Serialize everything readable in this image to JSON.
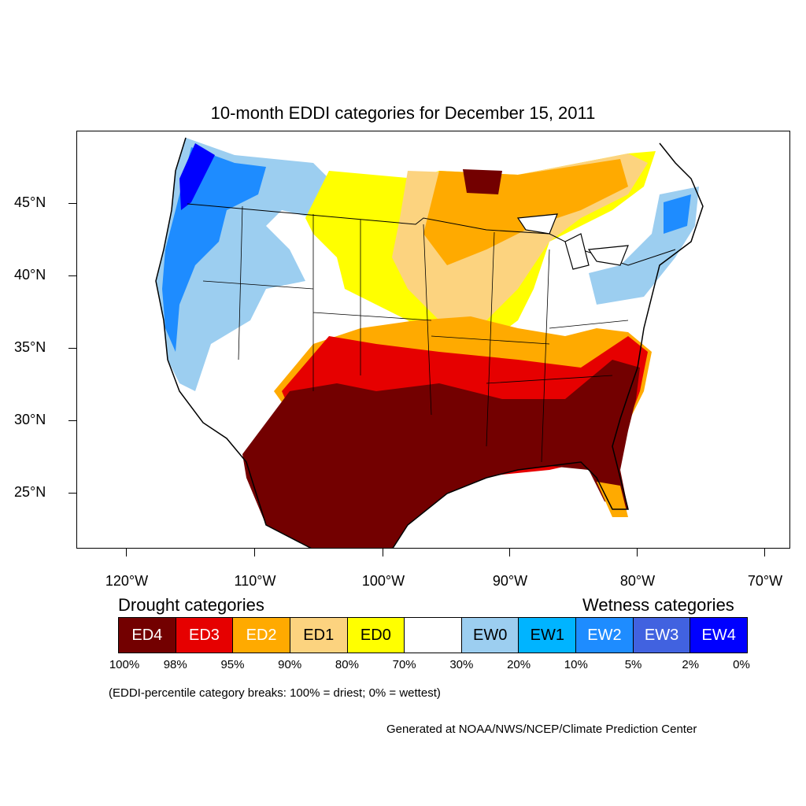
{
  "title": "10-month EDDI categories for December 15, 2011",
  "lat_labels": [
    "45°N",
    "40°N",
    "35°N",
    "30°N",
    "25°N"
  ],
  "lon_labels": [
    "120°W",
    "110°W",
    "100°W",
    "90°W",
    "80°W",
    "70°W"
  ],
  "legend": {
    "drought_heading": "Drought categories",
    "wetness_heading": "Wetness categories",
    "categories": [
      {
        "label": "ED4",
        "color": "#730000",
        "text_color": "#ffffff"
      },
      {
        "label": "ED3",
        "color": "#e60000",
        "text_color": "#ffffff"
      },
      {
        "label": "ED2",
        "color": "#ffaa00",
        "text_color": "#ffffff"
      },
      {
        "label": "ED1",
        "color": "#fcd37f",
        "text_color": "#000000"
      },
      {
        "label": "ED0",
        "color": "#ffff00",
        "text_color": "#000000"
      },
      {
        "label": "",
        "color": "#ffffff",
        "text_color": "#000000"
      },
      {
        "label": "EW0",
        "color": "#9ccef0",
        "text_color": "#000000"
      },
      {
        "label": "EW1",
        "color": "#00b4ff",
        "text_color": "#000000"
      },
      {
        "label": "EW2",
        "color": "#1e8cff",
        "text_color": "#ffffff"
      },
      {
        "label": "EW3",
        "color": "#4162e0",
        "text_color": "#ffffff"
      },
      {
        "label": "EW4",
        "color": "#0000ff",
        "text_color": "#ffffff"
      }
    ],
    "breaks": [
      "100%",
      "98%",
      "95%",
      "90%",
      "80%",
      "70%",
      "30%",
      "20%",
      "10%",
      "5%",
      "2%",
      "0%"
    ]
  },
  "note": "(EDDI-percentile category breaks: 100% = driest; 0% = wettest)",
  "credit": "Generated at NOAA/NWS/NCEP/Climate Prediction Center"
}
